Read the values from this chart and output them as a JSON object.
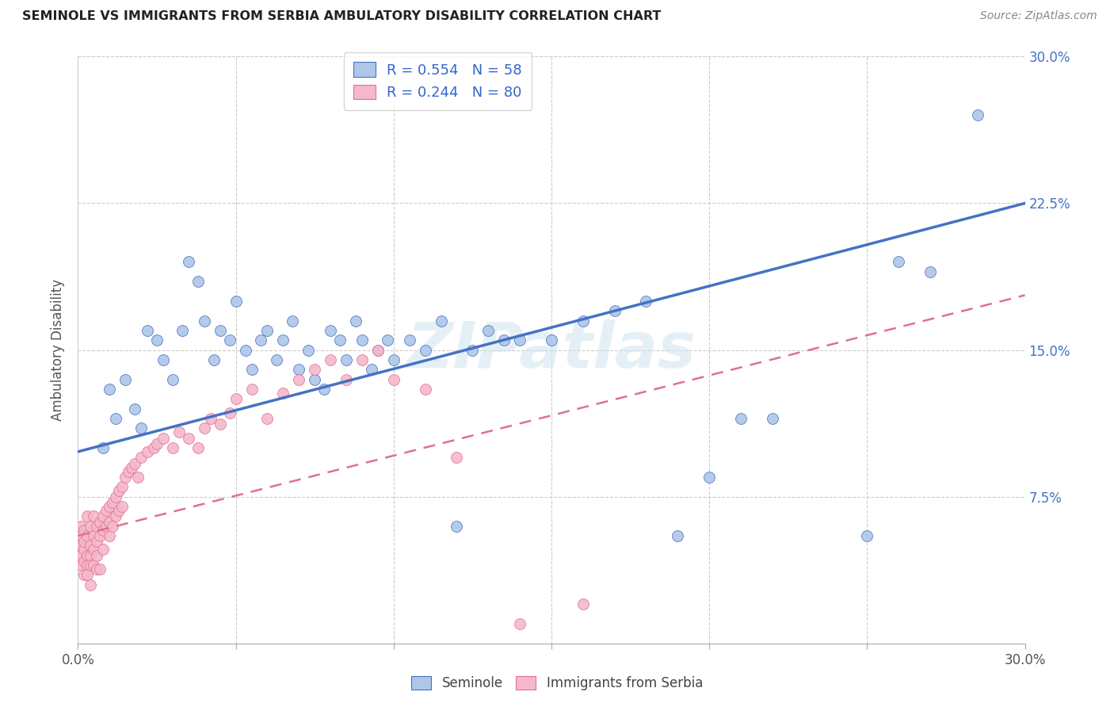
{
  "title": "SEMINOLE VS IMMIGRANTS FROM SERBIA AMBULATORY DISABILITY CORRELATION CHART",
  "source": "Source: ZipAtlas.com",
  "ylabel": "Ambulatory Disability",
  "watermark": "ZIPatlas",
  "xlim": [
    0.0,
    0.3
  ],
  "ylim": [
    0.0,
    0.3
  ],
  "xticks": [
    0.0,
    0.05,
    0.1,
    0.15,
    0.2,
    0.25,
    0.3
  ],
  "yticks": [
    0.0,
    0.075,
    0.15,
    0.225,
    0.3
  ],
  "ytick_labels": [
    "",
    "7.5%",
    "15.0%",
    "22.5%",
    "30.0%"
  ],
  "blue_R": 0.554,
  "blue_N": 58,
  "pink_R": 0.244,
  "pink_N": 80,
  "blue_color": "#aec6e8",
  "pink_color": "#f5b8cb",
  "blue_line_color": "#4472c4",
  "pink_line_color": "#e07090",
  "blue_line_x0": 0.0,
  "blue_line_y0": 0.098,
  "blue_line_x1": 0.3,
  "blue_line_y1": 0.225,
  "pink_line_x0": 0.0,
  "pink_line_y0": 0.055,
  "pink_line_x1": 0.3,
  "pink_line_y1": 0.178,
  "seminole_x": [
    0.008,
    0.01,
    0.012,
    0.015,
    0.018,
    0.02,
    0.022,
    0.025,
    0.027,
    0.03,
    0.033,
    0.035,
    0.038,
    0.04,
    0.043,
    0.045,
    0.048,
    0.05,
    0.053,
    0.055,
    0.058,
    0.06,
    0.063,
    0.065,
    0.068,
    0.07,
    0.073,
    0.075,
    0.078,
    0.08,
    0.083,
    0.085,
    0.088,
    0.09,
    0.093,
    0.095,
    0.098,
    0.1,
    0.105,
    0.11,
    0.115,
    0.12,
    0.125,
    0.13,
    0.135,
    0.14,
    0.15,
    0.16,
    0.17,
    0.18,
    0.19,
    0.2,
    0.21,
    0.22,
    0.25,
    0.26,
    0.27,
    0.285
  ],
  "seminole_y": [
    0.1,
    0.13,
    0.115,
    0.135,
    0.12,
    0.11,
    0.16,
    0.155,
    0.145,
    0.135,
    0.16,
    0.195,
    0.185,
    0.165,
    0.145,
    0.16,
    0.155,
    0.175,
    0.15,
    0.14,
    0.155,
    0.16,
    0.145,
    0.155,
    0.165,
    0.14,
    0.15,
    0.135,
    0.13,
    0.16,
    0.155,
    0.145,
    0.165,
    0.155,
    0.14,
    0.15,
    0.155,
    0.145,
    0.155,
    0.15,
    0.165,
    0.06,
    0.15,
    0.16,
    0.155,
    0.155,
    0.155,
    0.165,
    0.17,
    0.175,
    0.055,
    0.085,
    0.115,
    0.115,
    0.055,
    0.195,
    0.19,
    0.27
  ],
  "serbia_x": [
    0.001,
    0.001,
    0.001,
    0.001,
    0.001,
    0.002,
    0.002,
    0.002,
    0.002,
    0.002,
    0.003,
    0.003,
    0.003,
    0.003,
    0.003,
    0.004,
    0.004,
    0.004,
    0.004,
    0.004,
    0.005,
    0.005,
    0.005,
    0.005,
    0.006,
    0.006,
    0.006,
    0.006,
    0.007,
    0.007,
    0.007,
    0.008,
    0.008,
    0.008,
    0.009,
    0.009,
    0.01,
    0.01,
    0.01,
    0.011,
    0.011,
    0.012,
    0.012,
    0.013,
    0.013,
    0.014,
    0.014,
    0.015,
    0.016,
    0.017,
    0.018,
    0.019,
    0.02,
    0.022,
    0.024,
    0.025,
    0.027,
    0.03,
    0.032,
    0.035,
    0.038,
    0.04,
    0.042,
    0.045,
    0.048,
    0.05,
    0.055,
    0.06,
    0.065,
    0.07,
    0.075,
    0.08,
    0.085,
    0.09,
    0.095,
    0.1,
    0.11,
    0.12,
    0.14,
    0.16
  ],
  "serbia_y": [
    0.06,
    0.05,
    0.045,
    0.055,
    0.04,
    0.058,
    0.048,
    0.052,
    0.042,
    0.035,
    0.065,
    0.055,
    0.045,
    0.04,
    0.035,
    0.06,
    0.05,
    0.045,
    0.04,
    0.03,
    0.065,
    0.055,
    0.048,
    0.04,
    0.06,
    0.052,
    0.045,
    0.038,
    0.062,
    0.055,
    0.038,
    0.065,
    0.058,
    0.048,
    0.068,
    0.06,
    0.07,
    0.062,
    0.055,
    0.072,
    0.06,
    0.075,
    0.065,
    0.078,
    0.068,
    0.08,
    0.07,
    0.085,
    0.088,
    0.09,
    0.092,
    0.085,
    0.095,
    0.098,
    0.1,
    0.102,
    0.105,
    0.1,
    0.108,
    0.105,
    0.1,
    0.11,
    0.115,
    0.112,
    0.118,
    0.125,
    0.13,
    0.115,
    0.128,
    0.135,
    0.14,
    0.145,
    0.135,
    0.145,
    0.15,
    0.135,
    0.13,
    0.095,
    0.01,
    0.02
  ]
}
